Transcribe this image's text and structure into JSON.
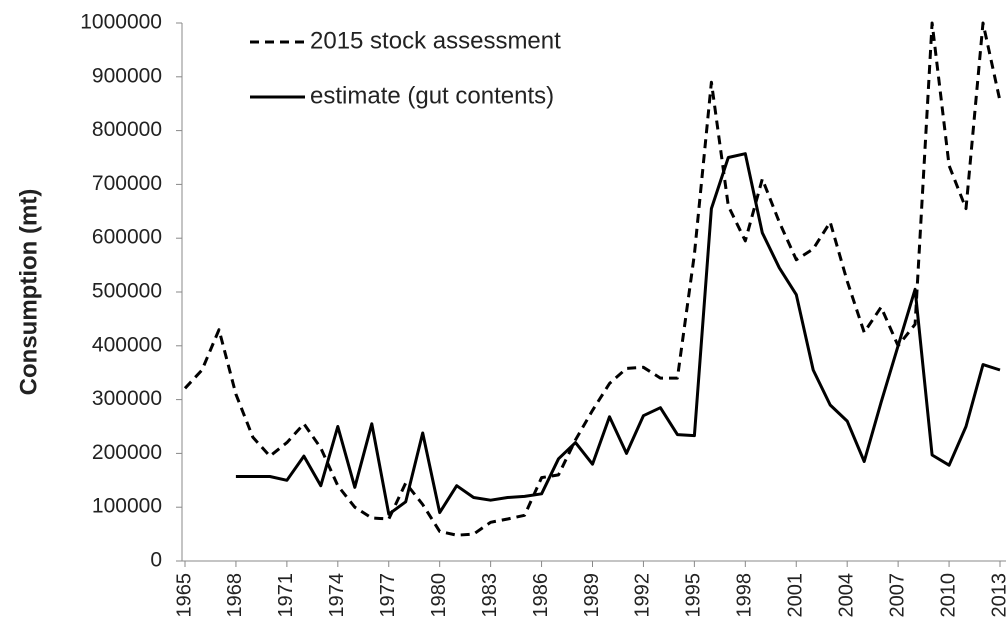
{
  "chart_data": {
    "type": "line",
    "y_label": "Consumption (mt)",
    "x": [
      1965,
      1966,
      1967,
      1968,
      1969,
      1970,
      1971,
      1972,
      1973,
      1974,
      1975,
      1976,
      1977,
      1978,
      1979,
      1980,
      1981,
      1982,
      1983,
      1984,
      1985,
      1986,
      1987,
      1988,
      1989,
      1990,
      1991,
      1992,
      1993,
      1994,
      1995,
      1996,
      1997,
      1998,
      1999,
      2000,
      2001,
      2002,
      2003,
      2004,
      2005,
      2006,
      2007,
      2008,
      2009,
      2010,
      2011,
      2012,
      2013
    ],
    "series": [
      {
        "name": "2015 stock assessment",
        "color": "#000000",
        "dash": "9,6",
        "values": [
          321000,
          355000,
          430000,
          310000,
          230000,
          195000,
          220000,
          255000,
          210000,
          140000,
          100000,
          80000,
          78000,
          145000,
          105000,
          55000,
          48000,
          50000,
          72000,
          78000,
          85000,
          155000,
          160000,
          225000,
          280000,
          330000,
          358000,
          360000,
          340000,
          340000,
          570000,
          890000,
          660000,
          595000,
          710000,
          630000,
          560000,
          580000,
          630000,
          520000,
          425000,
          472000,
          400000,
          440000,
          1000000,
          735000,
          655000,
          1000000,
          855000
        ]
      },
      {
        "name": "estimate (gut contents)",
        "color": "#000000",
        "values": [
          null,
          null,
          null,
          157000,
          157000,
          157000,
          150000,
          195000,
          140000,
          250000,
          137000,
          255000,
          87000,
          110000,
          238000,
          90000,
          140000,
          118000,
          113000,
          118000,
          120000,
          125000,
          190000,
          220000,
          180000,
          268000,
          200000,
          270000,
          285000,
          235000,
          233000,
          655000,
          750000,
          757000,
          610000,
          545000,
          495000,
          355000,
          290000,
          260000,
          185000,
          295000,
          400000,
          505000,
          197000,
          178000,
          250000,
          365000,
          355000
        ]
      }
    ],
    "xlim": [
      1965,
      2013
    ],
    "xticks": [
      1965,
      1968,
      1971,
      1974,
      1977,
      1980,
      1983,
      1986,
      1989,
      1992,
      1995,
      1998,
      2001,
      2004,
      2007,
      2010,
      2013
    ],
    "ylim": [
      0,
      1000000
    ],
    "yticks": [
      0,
      100000,
      200000,
      300000,
      400000,
      500000,
      600000,
      700000,
      800000,
      900000,
      1000000
    ],
    "grid": false,
    "legend": "top-left"
  }
}
